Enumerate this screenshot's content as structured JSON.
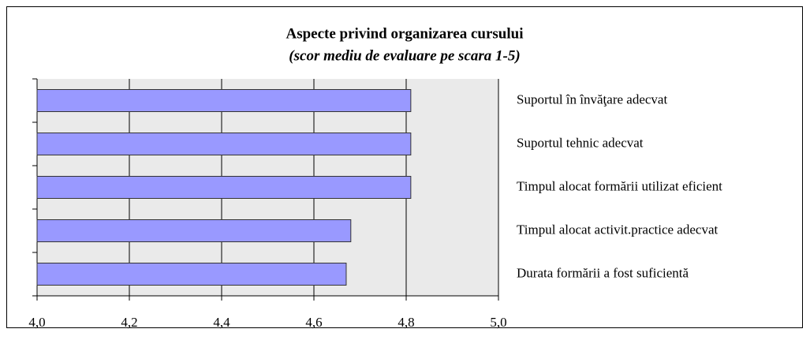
{
  "chart_data": {
    "type": "bar",
    "orientation": "horizontal",
    "title": "Aspecte privind organizarea cursului",
    "subtitle": "(scor mediu de evaluare pe scara 1-5)",
    "categories": [
      "Suportul în învăţare adecvat",
      "Suportul tehnic adecvat",
      "Timpul alocat formării utilizat eficient",
      "Timpul alocat activit.practice adecvat",
      "Durata formării a fost suficientă"
    ],
    "values": [
      4.81,
      4.81,
      4.81,
      4.68,
      4.67
    ],
    "color": "#9999ff",
    "xlim": [
      4.0,
      5.0
    ],
    "xticks": [
      {
        "value": 4.0,
        "label": "4,0"
      },
      {
        "value": 4.2,
        "label": "4,2"
      },
      {
        "value": 4.4,
        "label": "4,4"
      },
      {
        "value": 4.6,
        "label": "4,6"
      },
      {
        "value": 4.8,
        "label": "4,8"
      },
      {
        "value": 5.0,
        "label": "5,0"
      }
    ],
    "grid": true
  }
}
